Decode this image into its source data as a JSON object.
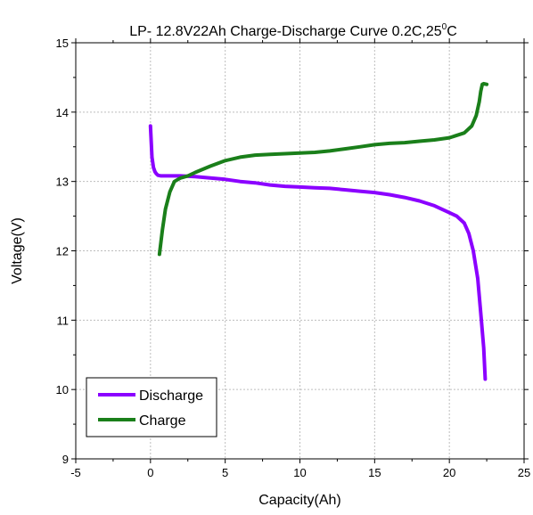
{
  "chart_data": {
    "type": "line",
    "title": "LP- 12.8V22Ah Charge-Discharge Curve  0.2C,25",
    "title_superscript": "0",
    "title_suffix": "C",
    "xlabel": "Capacity(Ah)",
    "ylabel": "Voltage(V)",
    "xlim": [
      -5,
      25
    ],
    "ylim": [
      9,
      15
    ],
    "xticks": [
      "-5",
      "0",
      "5",
      "10",
      "15",
      "20",
      "25"
    ],
    "yticks": [
      "9",
      "10",
      "11",
      "12",
      "13",
      "14",
      "15"
    ],
    "grid": true,
    "legend_position": "bottom-left",
    "series": [
      {
        "name": "Discharge",
        "color": "#8B00FF",
        "x": [
          0.0,
          0.1,
          0.2,
          0.3,
          0.4,
          0.5,
          0.7,
          1.0,
          2.0,
          3.0,
          4.0,
          5.0,
          6.0,
          7.0,
          8.0,
          9.0,
          10.0,
          11.0,
          12.0,
          13.0,
          14.0,
          15.0,
          16.0,
          17.0,
          18.0,
          19.0,
          19.5,
          20.0,
          20.5,
          21.0,
          21.3,
          21.6,
          21.9,
          22.1,
          22.3,
          22.4
        ],
        "y": [
          13.8,
          13.35,
          13.2,
          13.14,
          13.11,
          13.09,
          13.08,
          13.08,
          13.08,
          13.07,
          13.05,
          13.03,
          13.0,
          12.98,
          12.95,
          12.93,
          12.92,
          12.91,
          12.9,
          12.88,
          12.86,
          12.84,
          12.81,
          12.77,
          12.72,
          12.65,
          12.6,
          12.55,
          12.5,
          12.4,
          12.25,
          12.0,
          11.6,
          11.1,
          10.6,
          10.15
        ]
      },
      {
        "name": "Charge",
        "color": "#1A7F1A",
        "x": [
          0.6,
          0.8,
          1.0,
          1.3,
          1.6,
          2.0,
          2.5,
          3.0,
          4.0,
          5.0,
          6.0,
          7.0,
          8.0,
          9.0,
          10.0,
          11.0,
          12.0,
          13.0,
          14.0,
          15.0,
          16.0,
          17.0,
          18.0,
          19.0,
          20.0,
          21.0,
          21.5,
          21.8,
          22.0,
          22.1,
          22.2,
          22.3,
          22.5
        ],
        "y": [
          11.95,
          12.3,
          12.6,
          12.85,
          13.0,
          13.05,
          13.08,
          13.13,
          13.22,
          13.3,
          13.35,
          13.38,
          13.39,
          13.4,
          13.41,
          13.42,
          13.44,
          13.47,
          13.5,
          13.53,
          13.55,
          13.56,
          13.58,
          13.6,
          13.63,
          13.7,
          13.8,
          13.95,
          14.15,
          14.3,
          14.4,
          14.41,
          14.4
        ]
      }
    ]
  }
}
